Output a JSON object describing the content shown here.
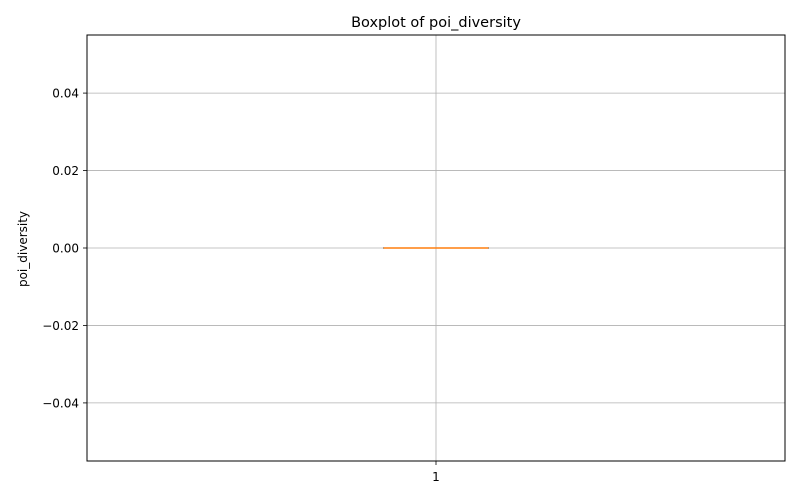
{
  "chart_data": {
    "type": "boxplot",
    "title": "Boxplot of poi_diversity",
    "xlabel": "",
    "ylabel": "poi_diversity",
    "categories": [
      "1"
    ],
    "boxes": [
      {
        "category": "1",
        "min": 0.0,
        "q1": 0.0,
        "median": 0.0,
        "q3": 0.0,
        "max": 0.0
      }
    ],
    "ylim": [
      -0.055,
      0.055
    ],
    "yticks": [
      -0.04,
      -0.02,
      0.0,
      0.02,
      0.04
    ],
    "ytick_labels": [
      "−0.04",
      "−0.02",
      "0.00",
      "0.02",
      "0.04"
    ],
    "grid": true,
    "colors": {
      "median": "#ff7f0e",
      "box": "#000000",
      "grid": "#b0b0b0",
      "axes": "#000000"
    }
  }
}
